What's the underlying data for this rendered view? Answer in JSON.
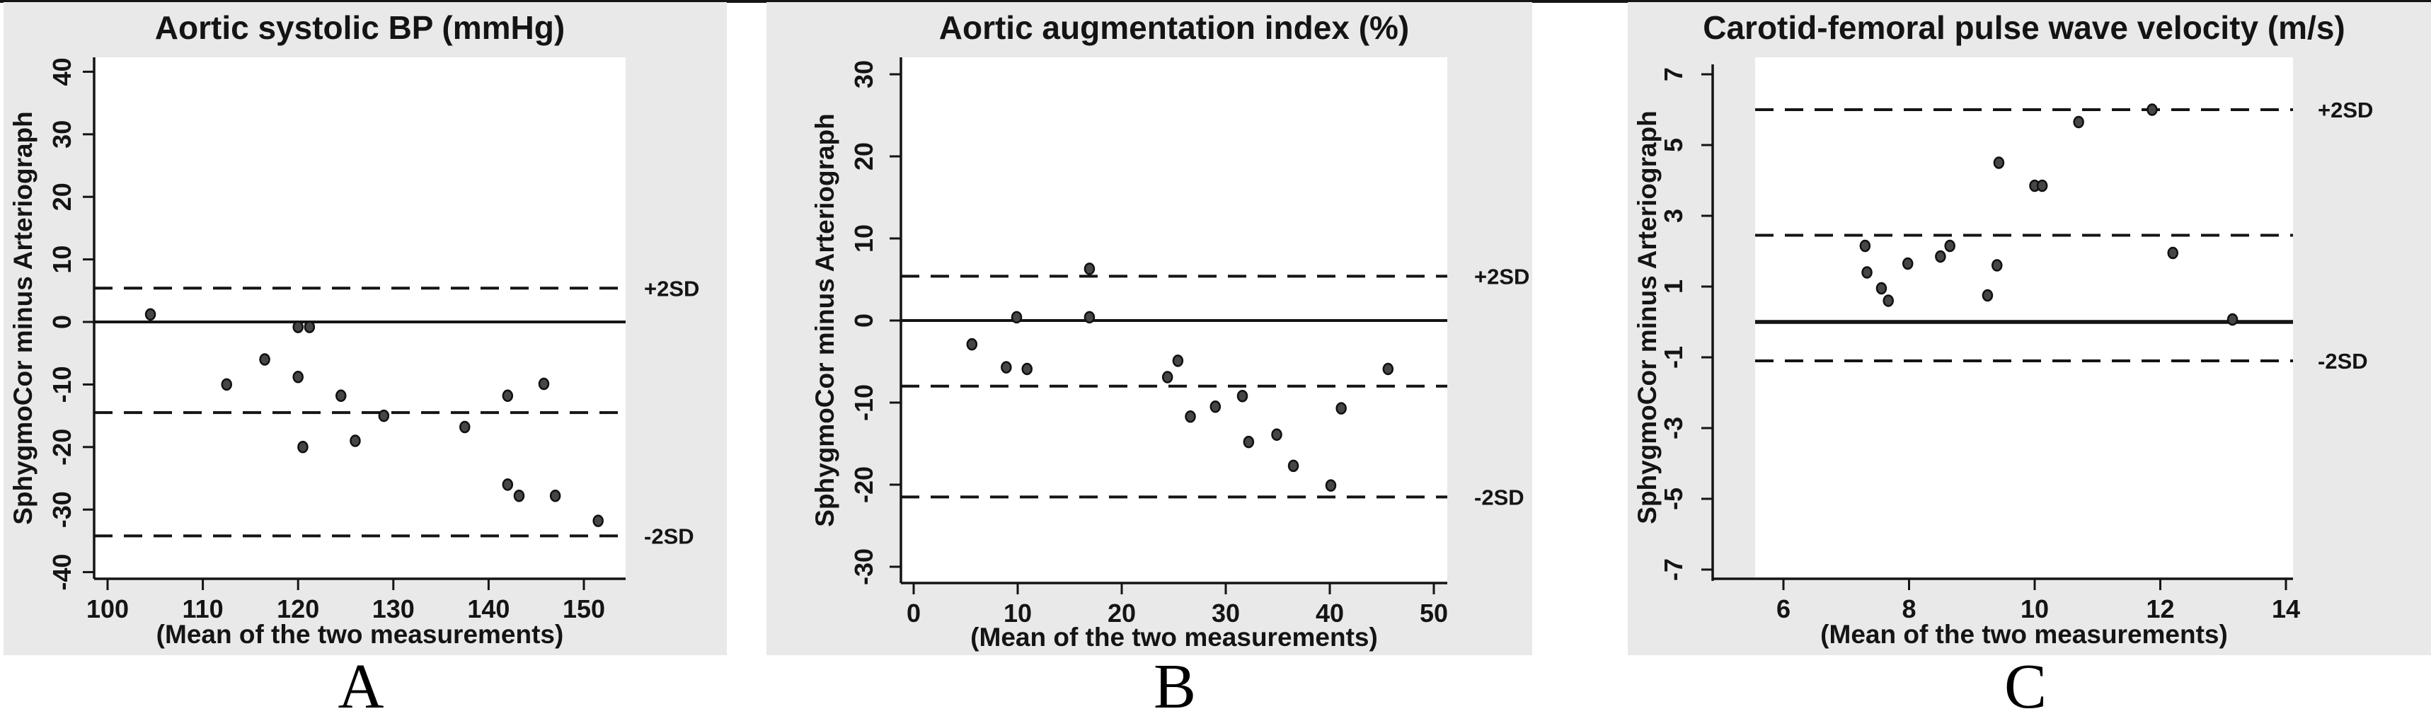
{
  "figure": {
    "panel_letters": [
      "A",
      "B",
      "C"
    ],
    "y_axis_label": "SphygmoCor minus Arteriograph",
    "x_axis_label": "(Mean of the two measurements)",
    "line_labels": {
      "plus": "+2SD",
      "minus": "-2SD"
    },
    "colors": {
      "panel_bg": "#e9e9e9",
      "plot_bg": "#ffffff",
      "ink": "#141414",
      "point_fill": "#464646",
      "point_stroke": "#101010"
    }
  },
  "chart_data": [
    {
      "type": "scatter",
      "title": "Aortic systolic BP (mmHg)",
      "xlabel": "(Mean of the two measurements)",
      "ylabel": "SphygmoCor minus Arteriograph",
      "x_ticks": [
        100,
        110,
        120,
        130,
        140,
        150
      ],
      "y_ticks": [
        40,
        30,
        20,
        10,
        0,
        -10,
        -20,
        -30,
        -40
      ],
      "xlim": [
        98,
        155
      ],
      "ylim": [
        -41,
        42
      ],
      "grid": false,
      "lines": {
        "zero_reference": 0,
        "mean": -14.5,
        "plus_2sd": 5.4,
        "minus_2sd": -34.2
      },
      "points": [
        [
          104.5,
          1.2
        ],
        [
          112.5,
          -10.0
        ],
        [
          116.5,
          -6.0
        ],
        [
          120.0,
          -0.8
        ],
        [
          121.2,
          -0.8
        ],
        [
          120.0,
          -8.8
        ],
        [
          120.5,
          -20.0
        ],
        [
          124.5,
          -11.8
        ],
        [
          126.0,
          -19.0
        ],
        [
          129.0,
          -15.0
        ],
        [
          137.5,
          -16.8
        ],
        [
          142.0,
          -11.8
        ],
        [
          145.8,
          -9.9
        ],
        [
          142.0,
          -26.0
        ],
        [
          143.2,
          -27.8
        ],
        [
          147.0,
          -27.8
        ],
        [
          151.5,
          -31.8
        ]
      ]
    },
    {
      "type": "scatter",
      "title": "Aortic augmentation index (%)",
      "xlabel": "(Mean of the two measurements)",
      "ylabel": "SphygmoCor minus Arteriograph",
      "x_ticks": [
        0,
        10,
        20,
        30,
        40,
        50
      ],
      "y_ticks": [
        30,
        20,
        10,
        0,
        -10,
        -20,
        -30
      ],
      "xlim": [
        -2,
        51
      ],
      "ylim": [
        -32,
        32
      ],
      "grid": false,
      "lines": {
        "zero_reference": 0,
        "mean": -8.0,
        "plus_2sd": 5.4,
        "minus_2sd": -21.5
      },
      "points": [
        [
          5.6,
          -2.9
        ],
        [
          8.9,
          -5.7
        ],
        [
          9.9,
          0.4
        ],
        [
          10.9,
          -5.9
        ],
        [
          16.9,
          6.3
        ],
        [
          16.9,
          0.4
        ],
        [
          24.4,
          -6.9
        ],
        [
          25.4,
          -4.9
        ],
        [
          26.6,
          -11.7
        ],
        [
          29.0,
          -10.5
        ],
        [
          31.6,
          -9.2
        ],
        [
          32.2,
          -14.8
        ],
        [
          34.9,
          -13.9
        ],
        [
          36.5,
          -17.7
        ],
        [
          40.1,
          -20.1
        ],
        [
          41.1,
          -10.7
        ],
        [
          45.6,
          -5.9
        ]
      ]
    },
    {
      "type": "scatter",
      "title": "Carotid-femoral pulse wave velocity (m/s)",
      "xlabel": "(Mean of the two measurements)",
      "ylabel": "SphygmoCor minus Arteriograph",
      "x_ticks": [
        6,
        8,
        10,
        12,
        14
      ],
      "y_ticks": [
        7,
        5,
        3,
        1,
        -1,
        -3,
        -5,
        -7
      ],
      "xlim": [
        5.5,
        14.1
      ],
      "ylim": [
        -7.5,
        7.5
      ],
      "grid": false,
      "lines": {
        "zero_reference": 0,
        "mean": 2.45,
        "plus_2sd": 6.0,
        "minus_2sd": -1.1
      },
      "points": [
        [
          7.3,
          2.15
        ],
        [
          7.33,
          1.4
        ],
        [
          7.56,
          0.95
        ],
        [
          7.67,
          0.6
        ],
        [
          7.98,
          1.65
        ],
        [
          8.5,
          1.85
        ],
        [
          8.65,
          2.15
        ],
        [
          9.25,
          0.75
        ],
        [
          9.4,
          1.6
        ],
        [
          9.43,
          4.5
        ],
        [
          10.0,
          3.85
        ],
        [
          10.12,
          3.85
        ],
        [
          10.7,
          5.65
        ],
        [
          11.87,
          6.0
        ],
        [
          12.2,
          1.95
        ],
        [
          13.15,
          0.07
        ]
      ]
    }
  ]
}
